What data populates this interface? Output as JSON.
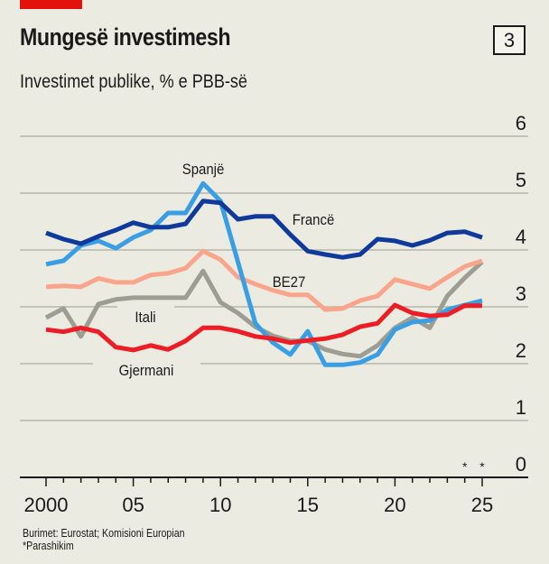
{
  "header": {
    "title": "Mungesë investimesh",
    "subtitle": "Investimet publike, % e PBB-së",
    "chart_number": "3",
    "accent_color": "#e3120b"
  },
  "footer": {
    "source": "Burimet: Eurostat; Komisioni Europian",
    "note": "*Parashikim"
  },
  "chart_data": {
    "type": "line",
    "title": "Mungesë investimesh",
    "subtitle": "Investimet publike, % e PBB-së",
    "xlabel": "",
    "ylabel": "",
    "x": [
      2000,
      2001,
      2002,
      2003,
      2004,
      2005,
      2006,
      2007,
      2008,
      2009,
      2010,
      2011,
      2012,
      2013,
      2014,
      2015,
      2016,
      2017,
      2018,
      2019,
      2020,
      2021,
      2022,
      2023,
      2024,
      2025
    ],
    "x_tick_values": [
      2000,
      2005,
      2010,
      2015,
      2020,
      2025
    ],
    "x_tick_labels": [
      "2000",
      "05",
      "10",
      "15",
      "20",
      "25"
    ],
    "xlim": [
      2000,
      2027
    ],
    "ylim": [
      0,
      6
    ],
    "y_ticks": [
      0,
      1,
      2,
      3,
      4,
      5,
      6
    ],
    "y_axis_side": "right",
    "grid": true,
    "forecast_marks": {
      "years": [
        2024,
        2025
      ],
      "symbol": "*"
    },
    "series": [
      {
        "name": "Spanjë",
        "color": "#3a9ee4",
        "values": [
          3.75,
          3.81,
          4.08,
          4.16,
          4.03,
          4.22,
          4.35,
          4.65,
          4.65,
          5.17,
          4.86,
          3.79,
          2.71,
          2.37,
          2.16,
          2.57,
          1.98,
          1.98,
          2.02,
          2.16,
          2.6,
          2.73,
          2.76,
          2.95,
          3.03,
          3.11
        ]
      },
      {
        "name": "Francë",
        "color": "#0f3a9c",
        "values": [
          4.3,
          4.19,
          4.11,
          4.24,
          4.35,
          4.48,
          4.4,
          4.4,
          4.46,
          4.86,
          4.83,
          4.54,
          4.59,
          4.59,
          4.27,
          3.98,
          3.92,
          3.87,
          3.92,
          4.19,
          4.16,
          4.08,
          4.17,
          4.3,
          4.32,
          4.22
        ]
      },
      {
        "name": "BE27",
        "color": "#f9a58c",
        "values": [
          3.35,
          3.37,
          3.35,
          3.5,
          3.43,
          3.43,
          3.56,
          3.59,
          3.68,
          3.98,
          3.83,
          3.52,
          3.4,
          3.29,
          3.21,
          3.21,
          2.95,
          2.97,
          3.11,
          3.19,
          3.48,
          3.4,
          3.32,
          3.52,
          3.71,
          3.81
        ]
      },
      {
        "name": "Itali",
        "color": "#9d9d93",
        "values": [
          2.81,
          2.97,
          2.48,
          3.05,
          3.13,
          3.16,
          3.16,
          3.16,
          3.16,
          3.63,
          3.08,
          2.89,
          2.65,
          2.49,
          2.4,
          2.4,
          2.25,
          2.17,
          2.13,
          2.32,
          2.63,
          2.81,
          2.63,
          3.19,
          3.51,
          3.79
        ]
      },
      {
        "name": "Gjermani",
        "color": "#ee1c24",
        "values": [
          2.6,
          2.56,
          2.63,
          2.56,
          2.29,
          2.24,
          2.32,
          2.25,
          2.4,
          2.63,
          2.63,
          2.57,
          2.48,
          2.44,
          2.37,
          2.41,
          2.44,
          2.51,
          2.65,
          2.71,
          3.03,
          2.89,
          2.84,
          2.86,
          3.02,
          3.02
        ]
      }
    ],
    "annotations": [
      "Spanjë",
      "Francë",
      "BE27",
      "Itali",
      "Gjermani"
    ]
  }
}
